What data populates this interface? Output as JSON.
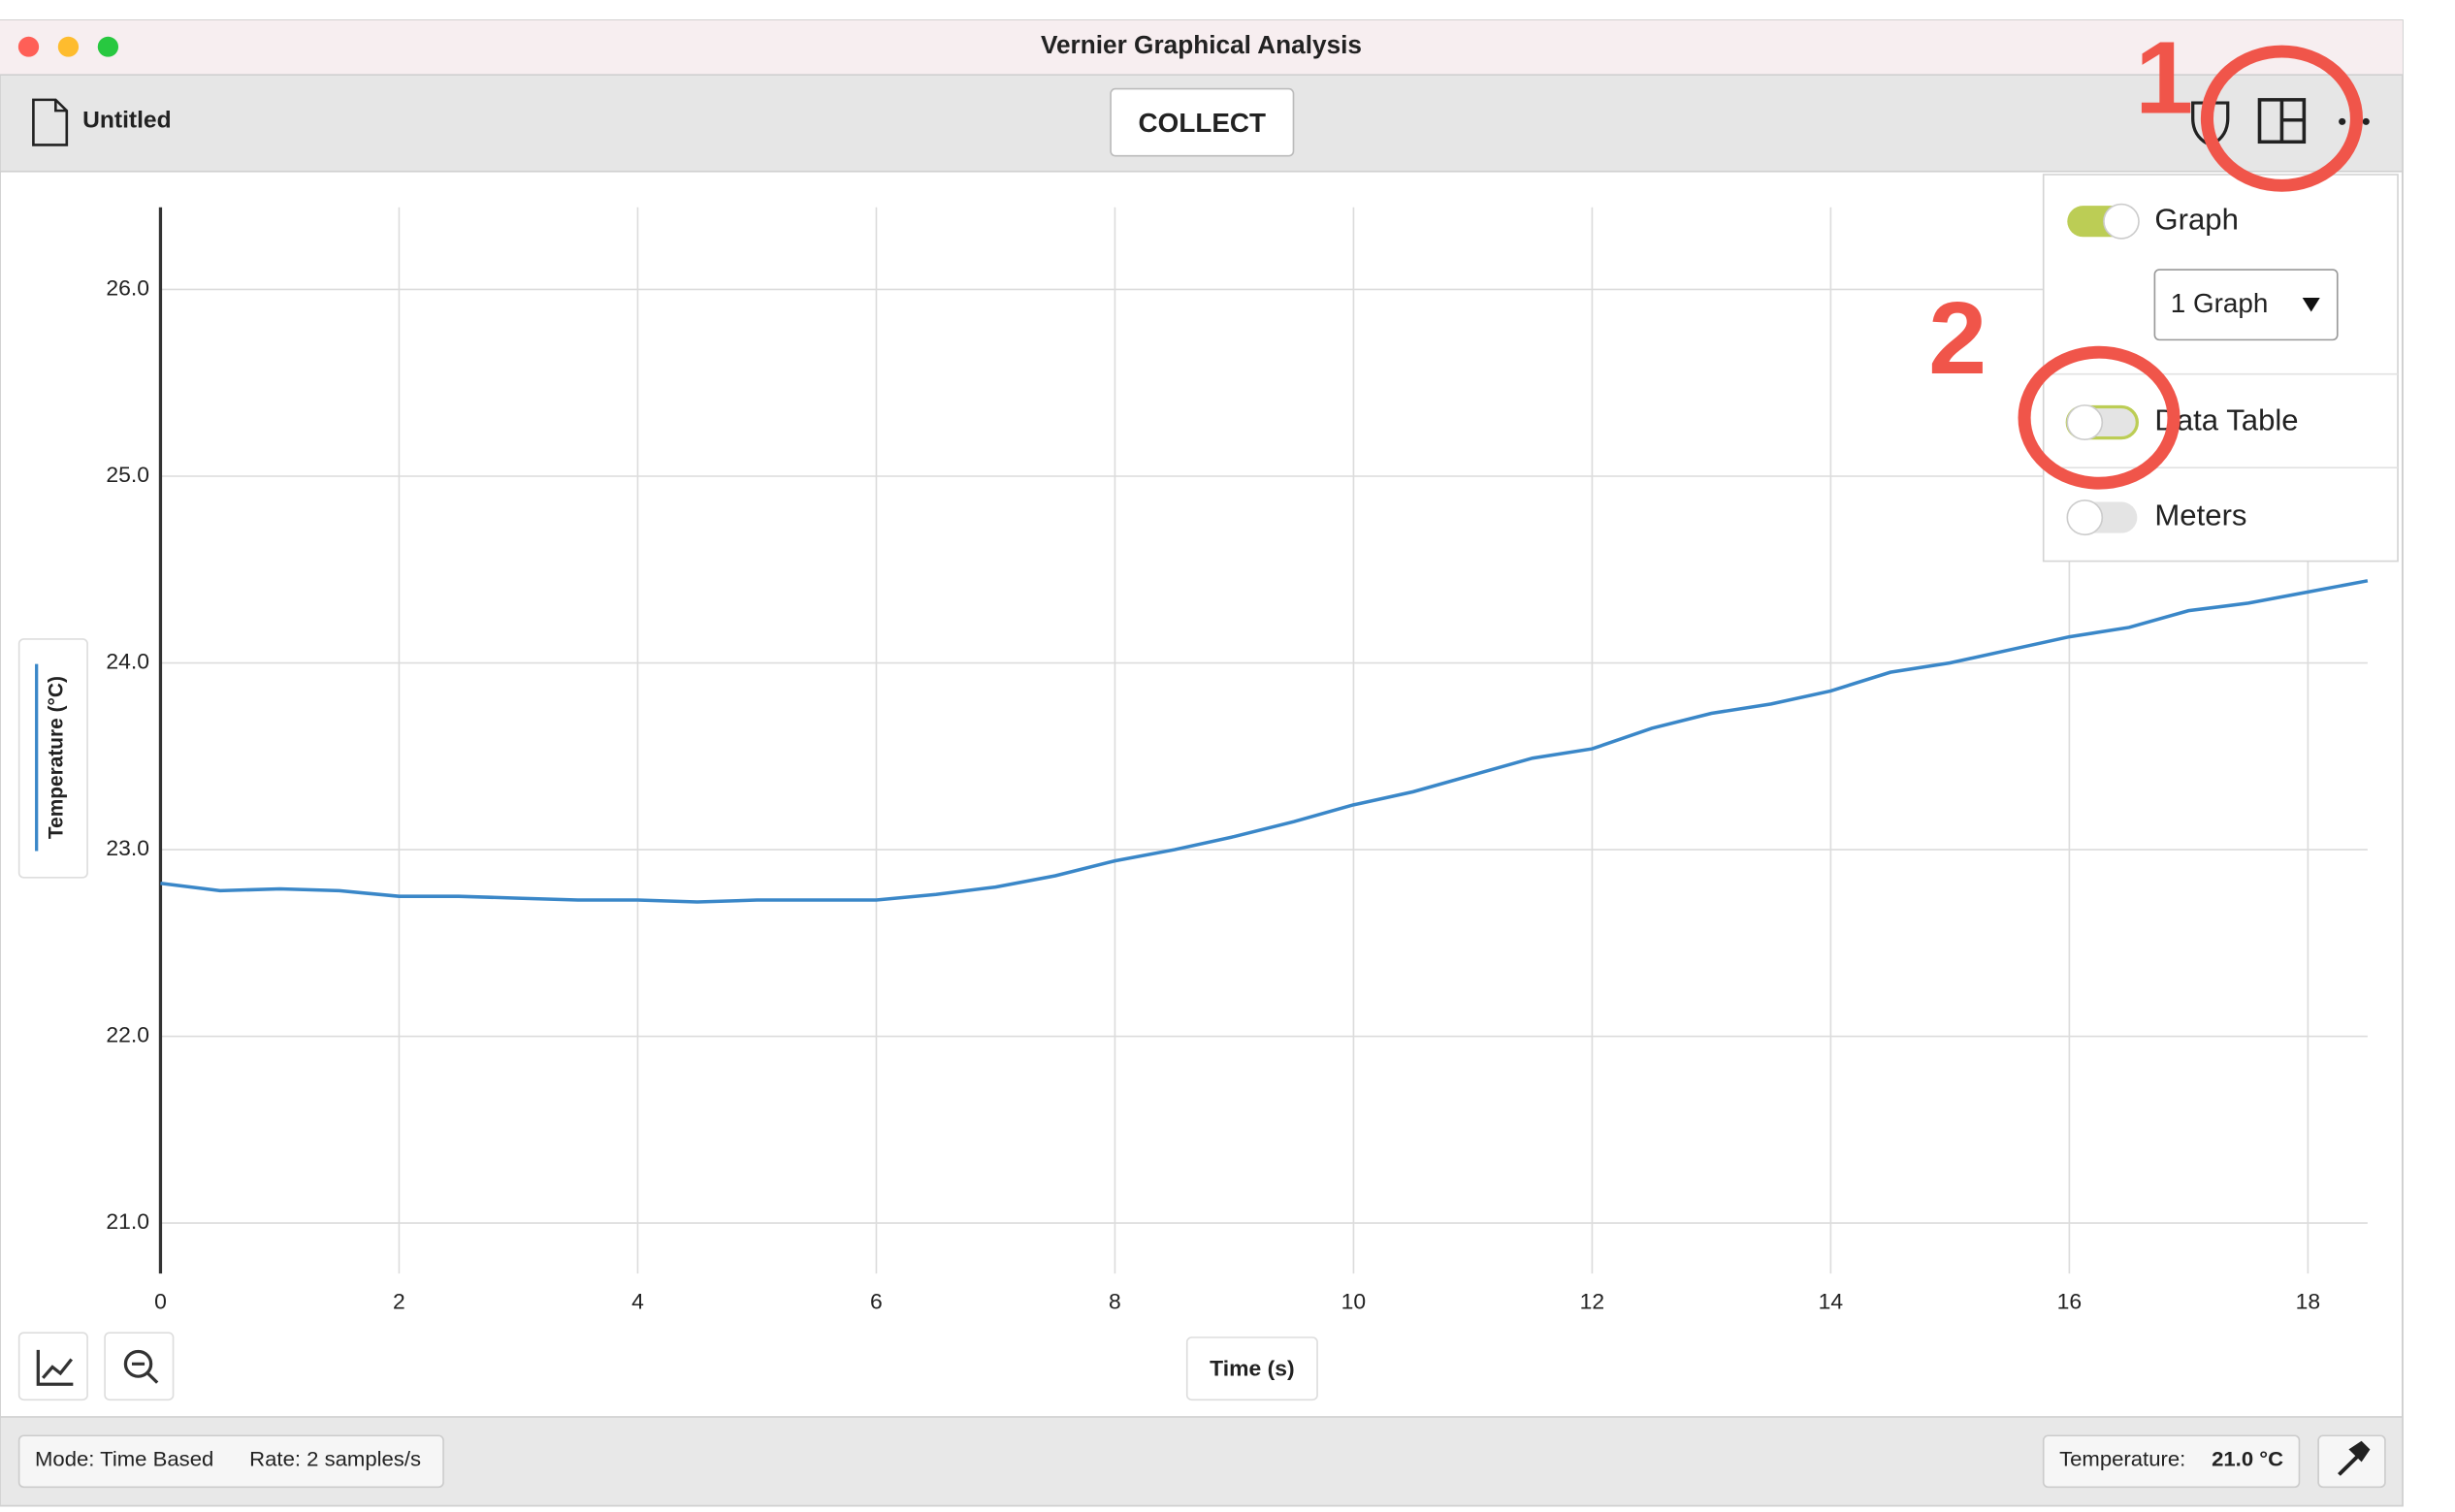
{
  "window": {
    "title": "Vernier Graphical Analysis"
  },
  "toolbar": {
    "file_name": "Untitled",
    "collect_button": "COLLECT"
  },
  "menu": {
    "items": [
      {
        "label": "Graph",
        "on": true
      },
      {
        "label": "Data Table",
        "on": false
      },
      {
        "label": "Meters",
        "on": false
      }
    ],
    "graph_count": "1 Graph"
  },
  "annotations": [
    "1",
    "2"
  ],
  "status_bar": {
    "mode": "Mode: Time Based",
    "rate": "Rate: 2 samples/s",
    "sensor_label": "Temperature:",
    "sensor_value": "21.0 °C"
  },
  "chart_data": {
    "type": "line",
    "x_label": "Time (s)",
    "y_label": "Temperature (°C)",
    "color": "#3a87c8",
    "x": [
      0,
      0.5,
      1,
      1.5,
      2,
      2.5,
      3,
      3.5,
      4,
      4.5,
      5,
      5.5,
      6,
      6.5,
      7,
      7.5,
      8,
      8.5,
      9,
      9.5,
      10,
      10.5,
      11,
      11.5,
      12,
      12.5,
      13,
      13.5,
      14,
      14.5,
      15,
      15.5,
      16,
      16.5,
      17,
      17.5,
      18,
      18.5
    ],
    "values": [
      22.82,
      22.78,
      22.79,
      22.78,
      22.75,
      22.75,
      22.74,
      22.73,
      22.73,
      22.72,
      22.73,
      22.73,
      22.73,
      22.76,
      22.8,
      22.86,
      22.94,
      23.0,
      23.07,
      23.15,
      23.24,
      23.31,
      23.4,
      23.49,
      23.54,
      23.65,
      23.73,
      23.78,
      23.85,
      23.95,
      24.0,
      24.07,
      24.14,
      24.19,
      24.28,
      24.32,
      24.38,
      24.44
    ],
    "xlim": [
      0,
      18.5
    ],
    "ylim": [
      20.73,
      26.44
    ],
    "xticks": [
      0,
      2,
      4,
      6,
      8,
      10,
      12,
      14,
      16,
      18
    ],
    "yticks": [
      {
        "value": 21,
        "label": "21.0"
      },
      {
        "value": 22,
        "label": "22.0"
      },
      {
        "value": 23,
        "label": "23.0"
      },
      {
        "value": 24,
        "label": "24.0"
      },
      {
        "value": 25,
        "label": "25.0"
      },
      {
        "value": 26,
        "label": "26.0"
      }
    ],
    "grid": true
  }
}
